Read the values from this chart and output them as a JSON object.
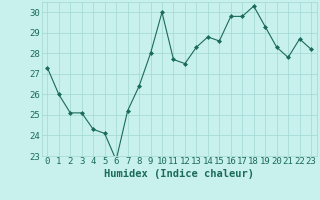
{
  "x": [
    0,
    1,
    2,
    3,
    4,
    5,
    6,
    7,
    8,
    9,
    10,
    11,
    12,
    13,
    14,
    15,
    16,
    17,
    18,
    19,
    20,
    21,
    22,
    23
  ],
  "y": [
    27.3,
    26.0,
    25.1,
    25.1,
    24.3,
    24.1,
    22.8,
    25.2,
    26.4,
    28.0,
    30.0,
    27.7,
    27.5,
    28.3,
    28.8,
    28.6,
    29.8,
    29.8,
    30.3,
    29.3,
    28.3,
    27.8,
    28.7,
    28.2
  ],
  "xlabel": "Humidex (Indice chaleur)",
  "ylim": [
    23,
    30.5
  ],
  "xlim": [
    -0.5,
    23.5
  ],
  "yticks": [
    23,
    24,
    25,
    26,
    27,
    28,
    29,
    30
  ],
  "xticks": [
    0,
    1,
    2,
    3,
    4,
    5,
    6,
    7,
    8,
    9,
    10,
    11,
    12,
    13,
    14,
    15,
    16,
    17,
    18,
    19,
    20,
    21,
    22,
    23
  ],
  "line_color": "#1a6b5a",
  "marker": "D",
  "marker_size": 2.0,
  "bg_color": "#c8f0ec",
  "grid_color": "#a0d8d3",
  "tick_label_color": "#1a6b5a",
  "xlabel_color": "#1a6b5a",
  "xlabel_fontsize": 7.5,
  "tick_fontsize": 6.5
}
